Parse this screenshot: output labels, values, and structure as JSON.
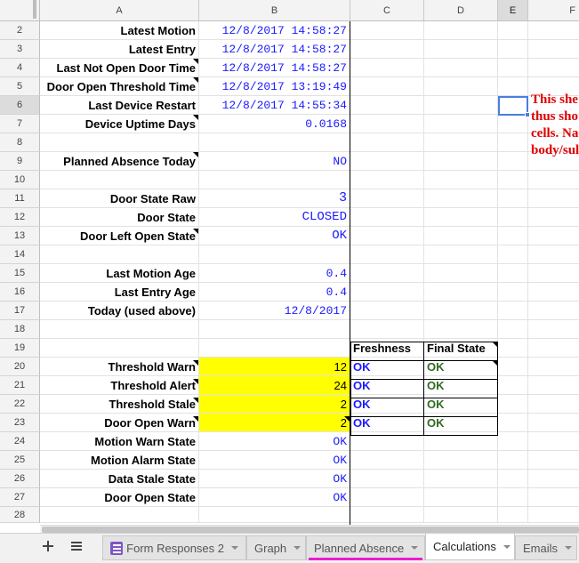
{
  "columns": [
    {
      "id": "A",
      "label": "A"
    },
    {
      "id": "B",
      "label": "B"
    },
    {
      "id": "C",
      "label": "C"
    },
    {
      "id": "D",
      "label": "D"
    },
    {
      "id": "E",
      "label": "E"
    },
    {
      "id": "F",
      "label": "F"
    }
  ],
  "rows": [
    {
      "n": "2",
      "a": "Latest Motion",
      "b": "12/8/2017 14:58:27"
    },
    {
      "n": "3",
      "a": "Latest Entry",
      "b": "12/8/2017 14:58:27"
    },
    {
      "n": "4",
      "a": "Last Not Open Door Time",
      "b": "12/8/2017 14:58:27"
    },
    {
      "n": "5",
      "a": "Door Open Threshold Time",
      "b": "12/8/2017 13:19:49"
    },
    {
      "n": "6",
      "a": "Last Device Restart",
      "b": "12/8/2017 14:55:34"
    },
    {
      "n": "7",
      "a": "Device Uptime Days",
      "b": "0.0168"
    },
    {
      "n": "8",
      "a": "",
      "b": ""
    },
    {
      "n": "9",
      "a": "Planned Absence Today",
      "b": "NO"
    },
    {
      "n": "10",
      "a": "",
      "b": ""
    },
    {
      "n": "11",
      "a": "Door State Raw",
      "b": "3"
    },
    {
      "n": "12",
      "a": "Door State",
      "b": "CLOSED"
    },
    {
      "n": "13",
      "a": "Door Left Open State",
      "b": "OK"
    },
    {
      "n": "14",
      "a": "",
      "b": ""
    },
    {
      "n": "15",
      "a": "Last Motion Age",
      "b": "0.4"
    },
    {
      "n": "16",
      "a": "Last Entry Age",
      "b": "0.4"
    },
    {
      "n": "17",
      "a": "Today (used above)",
      "b": "12/8/2017"
    },
    {
      "n": "18",
      "a": "",
      "b": ""
    },
    {
      "n": "19",
      "a": "",
      "b": "",
      "c": "Freshness",
      "d": "Final State"
    },
    {
      "n": "20",
      "a": "Threshold Warn",
      "b": "12",
      "c": "OK",
      "d": "OK"
    },
    {
      "n": "21",
      "a": "Threshold Alert",
      "b": "24",
      "c": "OK",
      "d": "OK"
    },
    {
      "n": "22",
      "a": "Threshold Stale",
      "b": "2",
      "c": "OK",
      "d": "OK"
    },
    {
      "n": "23",
      "a": "Door Open Warn",
      "b": "2",
      "c": "OK",
      "d": "OK"
    },
    {
      "n": "24",
      "a": "Motion Warn State",
      "b": "OK"
    },
    {
      "n": "25",
      "a": "Motion Alarm State",
      "b": "OK"
    },
    {
      "n": "26",
      "a": "Data Stale State",
      "b": "OK"
    },
    {
      "n": "27",
      "a": "Door Open State",
      "b": "OK"
    },
    {
      "n": "28",
      "a": "",
      "b": ""
    }
  ],
  "note_text": {
    "line1": "This she",
    "line2": "thus sho",
    "line3": "cells.  Na",
    "line4": "body/sul"
  },
  "tabs": [
    {
      "label": "Form Responses 2"
    },
    {
      "label": "Graph"
    },
    {
      "label": "Planned Absence"
    },
    {
      "label": "Calculations"
    },
    {
      "label": "Emails"
    }
  ],
  "colors": {
    "value_blue": "#1a1aff",
    "ok_green": "#2f6b1f",
    "highlight_yellow": "#ffff00",
    "note_red": "#e00000",
    "selection_blue": "#4a7ee0",
    "tab_underline": "#e91ecf"
  },
  "icons": {
    "add_sheet": "plus-icon",
    "all_sheets": "list-icon",
    "form_tab": "form-icon",
    "tab_menu": "caret-down-icon"
  }
}
